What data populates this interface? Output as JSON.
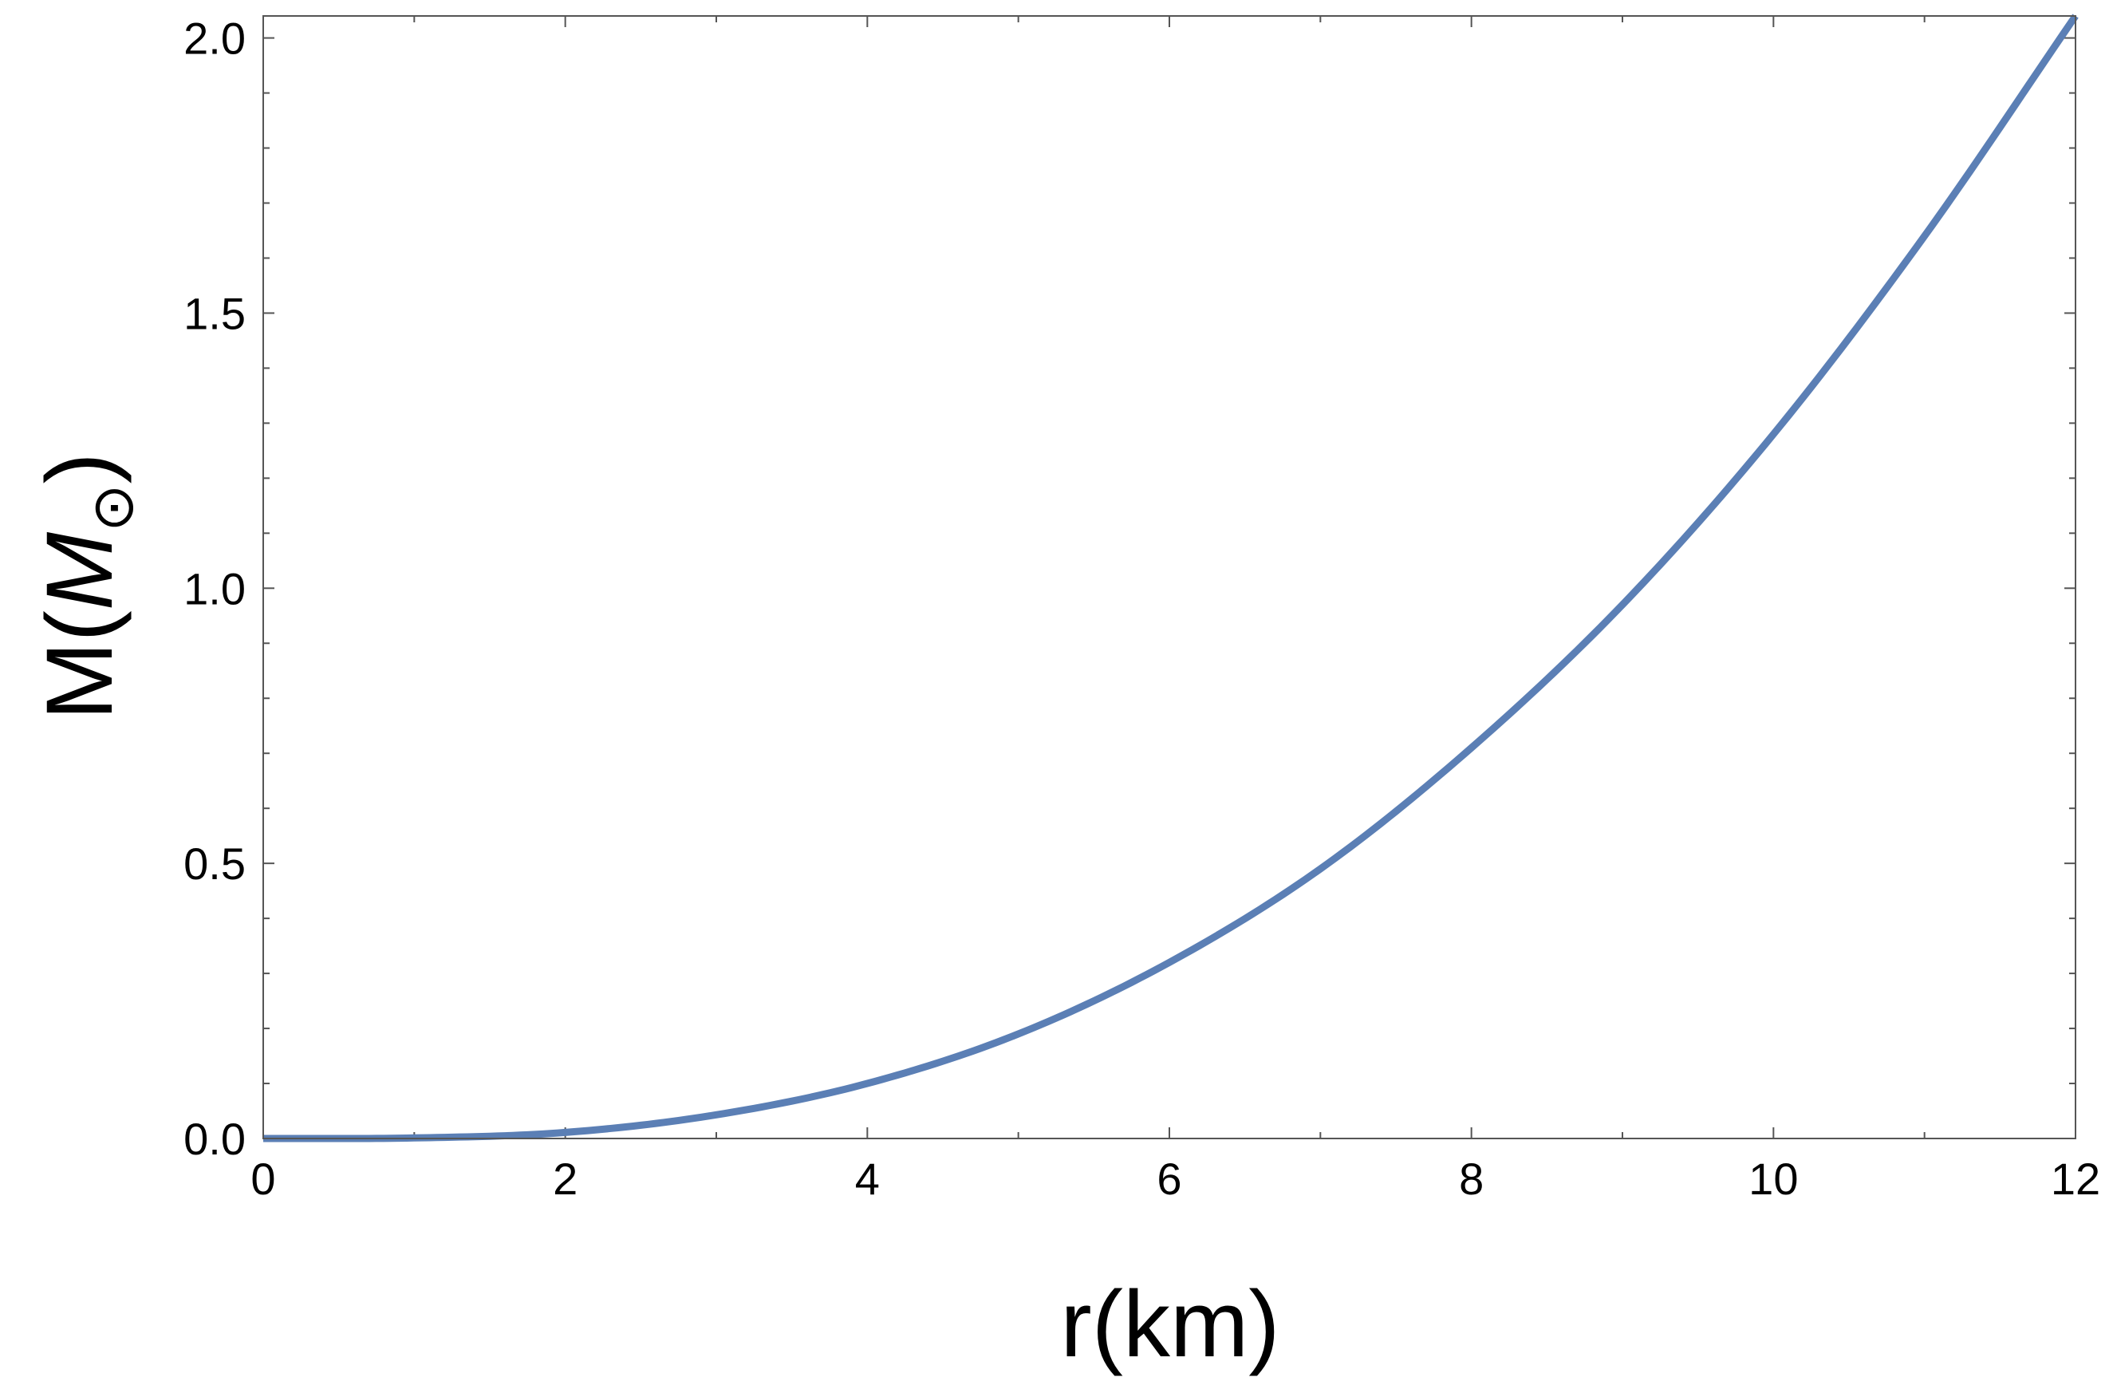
{
  "chart_data": {
    "type": "line",
    "xlabel": "r(km)",
    "ylabel": {
      "prefix": "M(",
      "symbol": "M",
      "subscript": "⊙",
      "suffix": ")"
    },
    "xlim": [
      0,
      12
    ],
    "ylim": [
      0,
      2.04
    ],
    "x_ticks": [
      0,
      2,
      4,
      6,
      8,
      10,
      12
    ],
    "x_tick_labels": [
      "0",
      "2",
      "4",
      "6",
      "8",
      "10",
      "12"
    ],
    "x_minor_step": 1,
    "y_ticks": [
      0,
      0.5,
      1.0,
      1.5,
      2.0
    ],
    "y_tick_labels": [
      "0.0",
      "0.5",
      "1.0",
      "1.5",
      "2.0"
    ],
    "y_minor_step": 0.1,
    "grid": false,
    "series": [
      {
        "color": "#5b7fb5",
        "x": [
          0,
          1,
          2,
          3,
          4,
          5,
          6,
          7,
          8,
          9,
          10,
          11,
          12
        ],
        "y": [
          0,
          0.001,
          0.011,
          0.043,
          0.1,
          0.19,
          0.32,
          0.49,
          0.71,
          0.97,
          1.28,
          1.64,
          2.04
        ]
      }
    ]
  }
}
